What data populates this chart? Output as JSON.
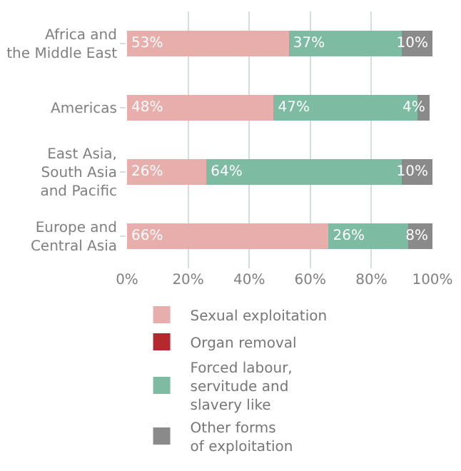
{
  "chart_data": {
    "type": "bar",
    "orientation": "horizontal",
    "stacked": true,
    "categories": [
      "Africa and\nthe Middle East",
      "Americas",
      "East Asia,\nSouth Asia\nand Pacific",
      "Europe and\nCentral Asia"
    ],
    "series": [
      {
        "name": "Sexual exploitation",
        "color": "#e8aeab",
        "values": [
          53,
          48,
          26,
          66
        ],
        "value_labels": [
          "53%",
          "48%",
          "26%",
          "66%"
        ]
      },
      {
        "name": "Organ removal",
        "color": "#b5282e",
        "values": [
          0,
          0,
          0,
          0
        ],
        "value_labels": [
          null,
          null,
          null,
          null
        ]
      },
      {
        "name": "Forced labour,\nservitude and\nslavery like",
        "color": "#7dbba3",
        "values": [
          37,
          47,
          64,
          26
        ],
        "value_labels": [
          "37%",
          "47%",
          "64%",
          "26%"
        ]
      },
      {
        "name": "Other forms\nof exploitation",
        "color": "#8a8a8a",
        "values": [
          10,
          4,
          10,
          8
        ],
        "value_labels": [
          "10%",
          "4%",
          "10%",
          "8%"
        ]
      }
    ],
    "xlim": [
      0,
      100
    ],
    "xticks": [
      {
        "value": 0,
        "label": "0%"
      },
      {
        "value": 20,
        "label": "20%"
      },
      {
        "value": 40,
        "label": "40%"
      },
      {
        "value": 60,
        "label": "60%"
      },
      {
        "value": 80,
        "label": "80%"
      },
      {
        "value": 100,
        "label": "100%"
      }
    ],
    "grid": "x",
    "legend": "bottom"
  }
}
